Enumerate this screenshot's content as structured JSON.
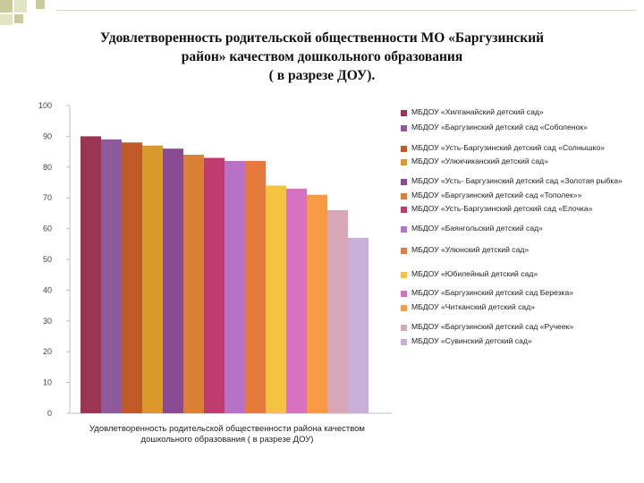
{
  "slide": {
    "title_lines": [
      "Удовлетворенность родительской общественности МО «Баргузинский",
      "район» качеством дошкольного образования",
      "( в разрезе ДОУ)."
    ]
  },
  "chart_data": {
    "type": "bar",
    "title": "",
    "xlabel": "",
    "ylabel": "",
    "ylim": [
      0,
      100
    ],
    "yticks": [
      0,
      10,
      20,
      30,
      40,
      50,
      60,
      70,
      80,
      90,
      100
    ],
    "grid": false,
    "legend_position": "right",
    "category_lines": [
      "Удовлетворенность родительской общественности района качеством",
      "дошкольного образования ( в разрезе ДОУ)"
    ],
    "series": [
      {
        "name": "МБДОУ «Хилганайский детский сад»",
        "values": [
          90
        ],
        "color": "#9b3554"
      },
      {
        "name": "МБДОУ «Баргузинский детский сад «Соболенок»",
        "values": [
          89
        ],
        "color": "#8e5a9c"
      },
      {
        "name": "МБДОУ «Усть-Баргузинский детский сад «Солнышко»",
        "values": [
          88
        ],
        "color": "#c05a28"
      },
      {
        "name": "МБДОУ «Улюкчиканский детский сад»",
        "values": [
          87
        ],
        "color": "#d99a2b"
      },
      {
        "name": "МБДОУ «Усть- Баргузинский детский сад «Золотая рыбка»",
        "values": [
          86
        ],
        "color": "#8b4b93"
      },
      {
        "name": "МБДОУ «Баргузинский детский сад «Тополек»»",
        "values": [
          84
        ],
        "color": "#d98035"
      },
      {
        "name": "МБДОУ «Усть-Баргузинский детский сад «Елочка»",
        "values": [
          83
        ],
        "color": "#bf3d6e"
      },
      {
        "name": "МБДОУ «Баянгольский детский сад»",
        "values": [
          82
        ],
        "color": "#b772c8"
      },
      {
        "name": "МБДОУ «Улюнский детский сад»",
        "values": [
          82
        ],
        "color": "#e67a3c"
      },
      {
        "name": "МБДОУ «Юбилейный детский сад»",
        "values": [
          74
        ],
        "color": "#f4c33f"
      },
      {
        "name": "МБДОУ «Баргузинский детский сад Березка»",
        "values": [
          73
        ],
        "color": "#d772c0"
      },
      {
        "name": "МБДОУ «Читканский детский сад»",
        "values": [
          71
        ],
        "color": "#f99a45"
      },
      {
        "name": "МБДОУ «Баргузинский детский сад «Ручеек»",
        "values": [
          66
        ],
        "color": "#d9a8b8"
      },
      {
        "name": "МБДОУ «Сувинский детский сад»",
        "values": [
          57
        ],
        "color": "#c8b0d8"
      }
    ]
  }
}
